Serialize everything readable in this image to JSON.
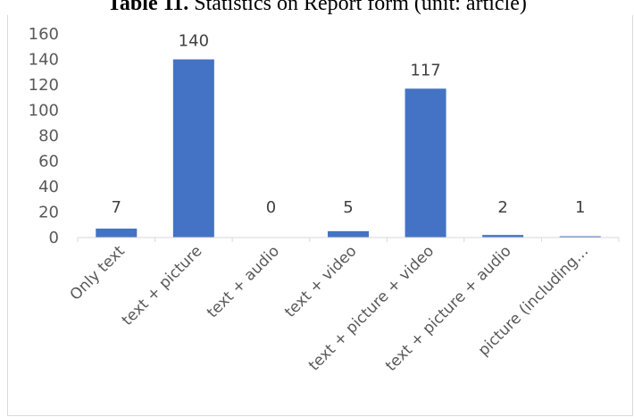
{
  "chart_data": {
    "type": "bar",
    "title_bold": "Table 11.",
    "title_rest": " Statistics on Report form (unit: article)",
    "categories": [
      "Only text",
      "text + picture",
      "text + audio",
      "text + video",
      "text + picture + video",
      "text + picture + audio",
      "picture (including…"
    ],
    "values": [
      7,
      140,
      0,
      5,
      117,
      2,
      1
    ],
    "data_labels": [
      "7",
      "140",
      "0",
      "5",
      "117",
      "2",
      "1"
    ],
    "yticks": [
      0,
      20,
      40,
      60,
      80,
      100,
      120,
      140,
      160
    ],
    "ylim": [
      0,
      160
    ],
    "bar_color": "#4472C4",
    "grid": false,
    "legend": "none"
  }
}
